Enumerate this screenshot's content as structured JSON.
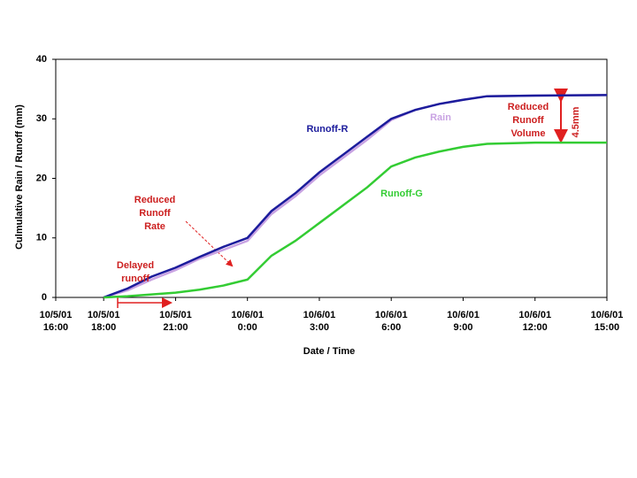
{
  "chart_data": {
    "type": "line",
    "y_label": "Culmulative Rain / Runoff (mm)",
    "x_label": "Date / Time",
    "x": [
      "10/5/01 18:00",
      "10/5/01 19:00",
      "10/5/01 20:00",
      "10/5/01 21:00",
      "10/5/01 22:00",
      "10/5/01 23:00",
      "10/6/01 0:00",
      "10/6/01 1:00",
      "10/6/01 2:00",
      "10/6/01 3:00",
      "10/6/01 4:00",
      "10/6/01 5:00",
      "10/6/01 6:00",
      "10/6/01 7:00",
      "10/6/01 8:00",
      "10/6/01 9:00",
      "10/6/01 10:00",
      "10/6/01 12:00",
      "10/6/01 15:00"
    ],
    "series": [
      {
        "name": "Runoff-R",
        "color": "#1c1c9c",
        "values": [
          0,
          1.5,
          3.5,
          5,
          6.8,
          8.5,
          10,
          14.5,
          17.5,
          21,
          24,
          27,
          30,
          31.5,
          32.5,
          33.2,
          33.8,
          33.9,
          34
        ]
      },
      {
        "name": "Rain",
        "color": "#c9a3e3",
        "values": [
          0,
          1.2,
          3,
          4.6,
          6.5,
          8,
          9.5,
          14,
          17,
          20.5,
          23.5,
          26.5,
          29.8,
          31.5,
          32.5,
          33.2,
          33.8,
          33.9,
          34
        ]
      },
      {
        "name": "Runoff-G",
        "color": "#33cc33",
        "values": [
          0,
          0.2,
          0.5,
          0.8,
          1.3,
          2,
          3,
          7,
          9.5,
          12.5,
          15.5,
          18.5,
          22,
          23.5,
          24.5,
          25.3,
          25.8,
          26,
          26
        ]
      }
    ],
    "xlim": [
      "10/5/01 16:00",
      "10/6/01 15:00"
    ],
    "xticks": [
      "10/5/01 16:00",
      "10/5/01 18:00",
      "10/5/01 21:00",
      "10/6/01 0:00",
      "10/6/01 3:00",
      "10/6/01 6:00",
      "10/6/01 9:00",
      "10/6/01 12:00",
      "10/6/01 15:00"
    ],
    "ylim": [
      0,
      40
    ],
    "yticks": [
      0,
      10,
      20,
      30,
      40
    ],
    "grid": false,
    "annotations": {
      "volume": [
        "Reduced",
        "Runoff",
        "Volume"
      ],
      "difference": "4.5mm",
      "rate": [
        "Reduced",
        "Runoff",
        "Rate"
      ],
      "delay": [
        "Delayed",
        "runoff"
      ]
    }
  }
}
